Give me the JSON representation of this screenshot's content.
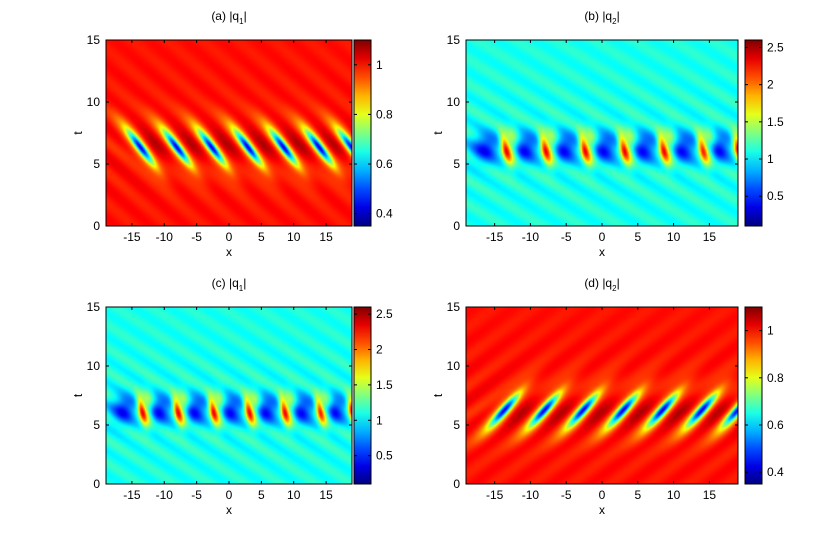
{
  "figure": {
    "panels": [
      {
        "id": "a",
        "title_prefix": "(a)",
        "title_q": "|q",
        "title_sub": "1",
        "title_end": "|",
        "pattern": "q1_single",
        "colorbar_ticks": [
          "0.4",
          "0.6",
          "0.8",
          "1"
        ]
      },
      {
        "id": "b",
        "title_prefix": "(b)",
        "title_q": "|q",
        "title_sub": "2",
        "title_end": "|",
        "pattern": "q2_double",
        "colorbar_ticks": [
          "0.5",
          "1",
          "1.5",
          "2",
          "2.5"
        ]
      },
      {
        "id": "c",
        "title_prefix": "(c)",
        "title_q": "|q",
        "title_sub": "1",
        "title_end": "|",
        "pattern": "q2_double",
        "colorbar_ticks": [
          "0.5",
          "1",
          "1.5",
          "2",
          "2.5"
        ]
      },
      {
        "id": "d",
        "title_prefix": "(d)",
        "title_q": "|q",
        "title_sub": "2",
        "title_end": "|",
        "pattern": "q1_single_mirror",
        "colorbar_ticks": [
          "0.4",
          "0.6",
          "0.8",
          "1"
        ]
      }
    ]
  },
  "chart_data": [
    {
      "type": "heatmap",
      "title": "(a) |q1|",
      "xlabel": "x",
      "ylabel": "t",
      "xlim": [
        -19,
        19
      ],
      "ylim": [
        0,
        15
      ],
      "xticks": [
        -15,
        -10,
        -5,
        0,
        5,
        10,
        15
      ],
      "yticks": [
        0,
        5,
        10,
        15
      ],
      "colorbar": {
        "min": 0.35,
        "max": 1.1,
        "ticks": [
          0.4,
          0.6,
          0.8,
          1
        ]
      },
      "colormap": "jet",
      "background_value": 1.0,
      "features": {
        "row_center_t": 6.3,
        "peak_positions_x": [
          -13.6,
          -8.0,
          -2.6,
          3.0,
          8.5,
          14.0,
          19.0
        ],
        "min_value": 0.35,
        "max_value": 1.1
      }
    },
    {
      "type": "heatmap",
      "title": "(b) |q2|",
      "xlabel": "x",
      "ylabel": "t",
      "xlim": [
        -19,
        19
      ],
      "ylim": [
        0,
        15
      ],
      "xticks": [
        -15,
        -10,
        -5,
        0,
        5,
        10,
        15
      ],
      "yticks": [
        0,
        5,
        10,
        15
      ],
      "colorbar": {
        "min": 0.1,
        "max": 2.6,
        "ticks": [
          0.5,
          1,
          1.5,
          2,
          2.5
        ]
      },
      "colormap": "jet",
      "background_value": 1.1,
      "features": {
        "row_center_t": 6.3,
        "peak_positions_x": [
          -13.5,
          -8.0,
          -2.5,
          3.0,
          8.5,
          14.0,
          19.0
        ],
        "min_value": 0.35,
        "max_value": 2.6
      }
    },
    {
      "type": "heatmap",
      "title": "(c) |q1|",
      "xlabel": "x",
      "ylabel": "t",
      "xlim": [
        -19,
        19
      ],
      "ylim": [
        0,
        15
      ],
      "xticks": [
        -15,
        -10,
        -5,
        0,
        5,
        10,
        15
      ],
      "yticks": [
        0,
        5,
        10,
        15
      ],
      "colorbar": {
        "min": 0.1,
        "max": 2.6,
        "ticks": [
          0.5,
          1,
          1.5,
          2,
          2.5
        ]
      },
      "colormap": "jet",
      "background_value": 1.1,
      "features": {
        "row_center_t": 6.3,
        "peak_positions_x": [
          -13.5,
          -8.0,
          -2.5,
          3.0,
          8.5,
          14.0,
          19.0
        ],
        "min_value": 0.35,
        "max_value": 2.6
      }
    },
    {
      "type": "heatmap",
      "title": "(d) |q2|",
      "xlabel": "x",
      "ylabel": "t",
      "xlim": [
        -19,
        19
      ],
      "ylim": [
        0,
        15
      ],
      "xticks": [
        -15,
        -10,
        -5,
        0,
        5,
        10,
        15
      ],
      "yticks": [
        0,
        5,
        10,
        15
      ],
      "colorbar": {
        "min": 0.35,
        "max": 1.1,
        "ticks": [
          0.4,
          0.6,
          0.8,
          1
        ]
      },
      "colormap": "jet",
      "background_value": 1.0,
      "features": {
        "row_center_t": 6.3,
        "peak_positions_x": [
          -13.6,
          -8.0,
          -2.6,
          3.0,
          8.5,
          14.0,
          19.0
        ],
        "min_value": 0.35,
        "max_value": 1.1
      }
    }
  ]
}
